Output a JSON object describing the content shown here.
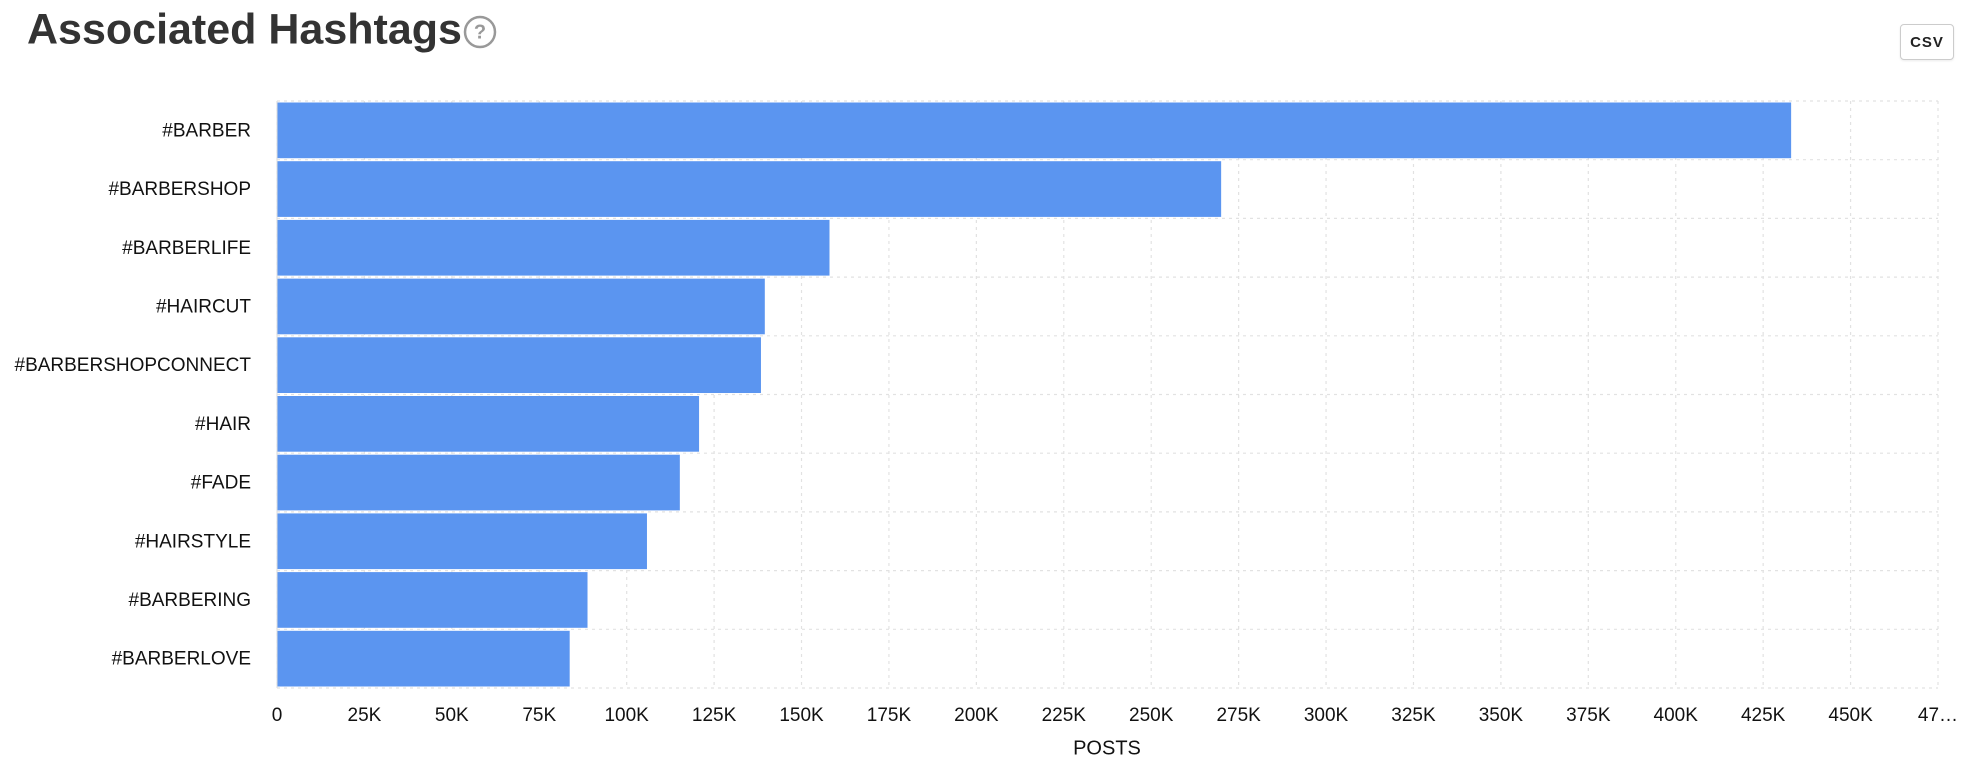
{
  "header": {
    "title": "Associated Hashtags",
    "help_icon": "?",
    "csv_button": "CSV"
  },
  "chart_data": {
    "type": "hbar",
    "color": "#5b95f0",
    "grid": true,
    "x_label": "POSTS",
    "categories": [
      "#BARBER",
      "#BARBERSHOP",
      "#BARBERLIFE",
      "#HAIRCUT",
      "#BARBERSHOPCONNECT",
      "#HAIR",
      "#FADE",
      "#HAIRSTYLE",
      "#BARBERING",
      "#BARBERLOVE"
    ],
    "values": [
      433000,
      270000,
      158000,
      139500,
      138400,
      120700,
      115200,
      105800,
      88800,
      83700
    ],
    "xlim": [
      0,
      475000
    ],
    "xticks": [
      0,
      {
        "value": 25000,
        "label": "25K"
      },
      {
        "value": 50000,
        "label": "50K"
      },
      {
        "value": 75000,
        "label": "75K"
      },
      {
        "value": 100000,
        "label": "100K"
      },
      {
        "value": 125000,
        "label": "125K"
      },
      {
        "value": 150000,
        "label": "150K"
      },
      {
        "value": 175000,
        "label": "175K"
      },
      {
        "value": 200000,
        "label": "200K"
      },
      {
        "value": 225000,
        "label": "225K"
      },
      {
        "value": 250000,
        "label": "250K"
      },
      {
        "value": 275000,
        "label": "275K"
      },
      {
        "value": 300000,
        "label": "300K"
      },
      {
        "value": 325000,
        "label": "325K"
      },
      {
        "value": 350000,
        "label": "350K"
      },
      {
        "value": 375000,
        "label": "375K"
      },
      {
        "value": 400000,
        "label": "400K"
      },
      {
        "value": 425000,
        "label": "425K"
      },
      {
        "value": 450000,
        "label": "450K"
      },
      {
        "value": 475000,
        "label": "47…"
      }
    ]
  }
}
